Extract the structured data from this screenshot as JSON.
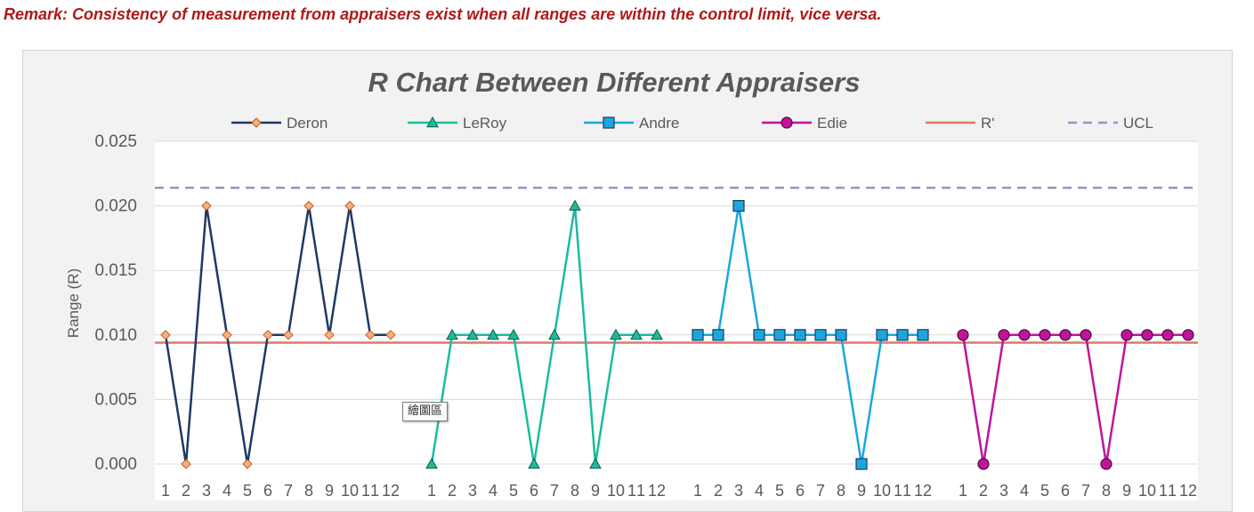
{
  "remark": "Remark: Consistency of measurement from appraisers exist when all ranges are within the control limit, vice versa.",
  "tooltip": "繪圖區",
  "chart_data": {
    "type": "line",
    "title": "R Chart Between Different Appraisers",
    "ylabel": "Range (R)",
    "xlabel": "",
    "ylim": [
      0,
      0.025
    ],
    "yticks": [
      "0.000",
      "0.005",
      "0.010",
      "0.015",
      "0.020",
      "0.025"
    ],
    "grid": "horizontal",
    "legend_position": "top",
    "categories": [
      "1",
      "2",
      "3",
      "4",
      "5",
      "6",
      "7",
      "8",
      "9",
      "10",
      "11",
      "12"
    ],
    "series": [
      {
        "name": "Deron",
        "color": "#1f3864",
        "marker": "diamond",
        "marker_fill": "#f4b183",
        "marker_edge": "#c55a11",
        "values": [
          0.01,
          0,
          0.02,
          0.01,
          0,
          0.01,
          0.01,
          0.02,
          0.01,
          0.02,
          0.01,
          0.01
        ]
      },
      {
        "name": "LeRoy",
        "color": "#1abc9c",
        "marker": "triangle",
        "marker_fill": "#20b89c",
        "marker_edge": "#0d5f50",
        "values": [
          0,
          0.01,
          0.01,
          0.01,
          0.01,
          0,
          0.01,
          0.02,
          0,
          0.01,
          0.01,
          0.01
        ]
      },
      {
        "name": "Andre",
        "color": "#1aa7dc",
        "marker": "square",
        "marker_fill": "#1aa7dc",
        "marker_edge": "#1f3864",
        "values": [
          0.01,
          0.01,
          0.02,
          0.01,
          0.01,
          0.01,
          0.01,
          0.01,
          0,
          0.01,
          0.01,
          0.01
        ]
      },
      {
        "name": "Edie",
        "color": "#c0149a",
        "marker": "circle",
        "marker_fill": "#c0149a",
        "marker_edge": "#4a0b3d",
        "values": [
          0.01,
          0,
          0.01,
          0.01,
          0.01,
          0.01,
          0.01,
          0,
          0.01,
          0.01,
          0.01,
          0.01
        ]
      }
    ],
    "reference_lines": [
      {
        "name": "R'",
        "value": 0.0094,
        "color": "#d97a6c",
        "style": "solid"
      },
      {
        "name": "UCL",
        "value": 0.0214,
        "color": "#a38ec8",
        "style": "dashed"
      }
    ]
  }
}
